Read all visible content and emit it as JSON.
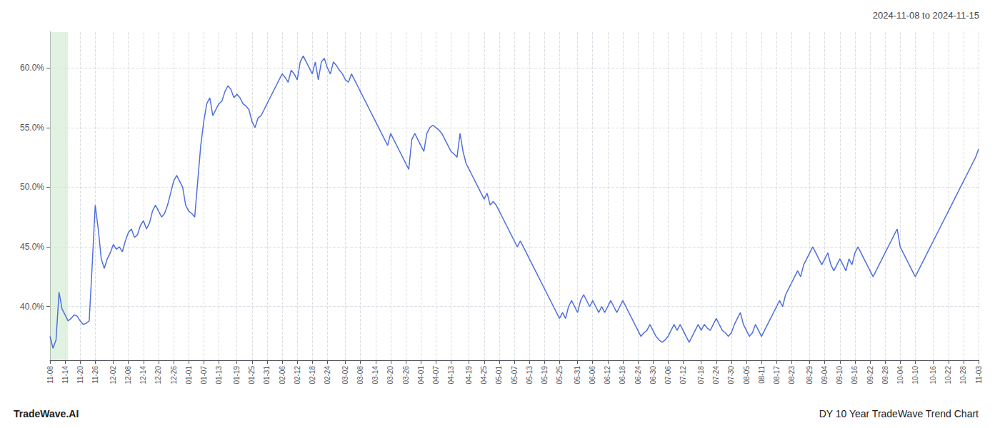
{
  "chart_data": {
    "type": "line",
    "title": "DY 10 Year TradeWave Trend Chart",
    "subtitle": "2024-11-08 to 2024-11-15",
    "annotations": [
      "TradeWave.AI"
    ],
    "grid": true,
    "ylim": [
      35.5,
      63.0
    ],
    "yticks": [
      {
        "value": 40.0,
        "label": "40.0%"
      },
      {
        "value": 45.0,
        "label": "45.0%"
      },
      {
        "value": 50.0,
        "label": "50.0%"
      },
      {
        "value": 55.0,
        "label": "55.0%"
      },
      {
        "value": 60.0,
        "label": "60.0%"
      }
    ],
    "highlight": {
      "from": 0,
      "to": 6,
      "color": "#d6ecd6"
    },
    "categories": [
      "11-08",
      null,
      null,
      null,
      null,
      "11-14",
      null,
      null,
      null,
      null,
      "11-20",
      null,
      null,
      null,
      null,
      "11-26",
      null,
      null,
      null,
      null,
      null,
      "12-02",
      null,
      null,
      null,
      null,
      "12-08",
      null,
      null,
      null,
      null,
      "12-14",
      null,
      null,
      null,
      null,
      "12-20",
      null,
      null,
      null,
      null,
      "12-26",
      null,
      null,
      null,
      null,
      "01-01",
      null,
      null,
      null,
      null,
      "01-07",
      null,
      null,
      null,
      null,
      "01-13",
      null,
      null,
      null,
      null,
      null,
      "01-19",
      null,
      null,
      null,
      null,
      "01-25",
      null,
      null,
      null,
      null,
      "01-31",
      null,
      null,
      null,
      null,
      "02-06",
      null,
      null,
      null,
      null,
      "02-12",
      null,
      null,
      null,
      null,
      "02-18",
      null,
      null,
      null,
      null,
      "02-24",
      null,
      null,
      null,
      null,
      null,
      "03-02",
      null,
      null,
      null,
      null,
      "03-08",
      null,
      null,
      null,
      null,
      "03-14",
      null,
      null,
      null,
      null,
      "03-20",
      null,
      null,
      null,
      null,
      "03-26",
      null,
      null,
      null,
      null,
      "04-01",
      null,
      null,
      null,
      null,
      "04-07",
      null,
      null,
      null,
      null,
      "04-13",
      null,
      null,
      null,
      null,
      null,
      "04-19",
      null,
      null,
      null,
      null,
      "04-25",
      null,
      null,
      null,
      null,
      "05-01",
      null,
      null,
      null,
      null,
      "05-07",
      null,
      null,
      null,
      null,
      "05-13",
      null,
      null,
      null,
      null,
      "05-19",
      null,
      null,
      null,
      null,
      "05-25",
      null,
      null,
      null,
      null,
      null,
      "05-31",
      null,
      null,
      null,
      null,
      "06-06",
      null,
      null,
      null,
      null,
      "06-12",
      null,
      null,
      null,
      null,
      "06-18",
      null,
      null,
      null,
      null,
      "06-24",
      null,
      null,
      null,
      null,
      "06-30",
      null,
      null,
      null,
      null,
      "07-06",
      null,
      null,
      null,
      null,
      "07-12",
      null,
      null,
      null,
      null,
      null,
      "07-18",
      null,
      null,
      null,
      null,
      "07-24",
      null,
      null,
      null,
      null,
      "07-30",
      null,
      null,
      null,
      null,
      "08-05",
      null,
      null,
      null,
      null,
      "08-11",
      null,
      null,
      null,
      null,
      "08-17",
      null,
      null,
      null,
      null,
      "08-23",
      null,
      null,
      null,
      null,
      null,
      "08-29",
      null,
      null,
      null,
      null,
      "09-04",
      null,
      null,
      null,
      null,
      "09-10",
      null,
      null,
      null,
      null,
      "09-16",
      null,
      null,
      null,
      null,
      "09-22",
      null,
      null,
      null,
      null,
      "09-28",
      null,
      null,
      null,
      null,
      "10-04",
      null,
      null,
      null,
      null,
      "10-10",
      null,
      null,
      null,
      null,
      null,
      "10-16",
      null,
      null,
      null,
      null,
      "10-22",
      null,
      null,
      null,
      null,
      "10-28",
      null,
      null,
      null,
      null,
      "11-03"
    ],
    "values": [
      37.5,
      36.5,
      37.2,
      41.2,
      39.8,
      39.3,
      38.8,
      39.0,
      39.3,
      39.2,
      38.8,
      38.5,
      38.6,
      38.8,
      43.5,
      48.5,
      46.5,
      44.0,
      43.2,
      44.0,
      44.5,
      45.2,
      44.8,
      45.0,
      44.6,
      45.5,
      46.2,
      46.5,
      45.8,
      46.0,
      46.8,
      47.2,
      46.5,
      47.0,
      48.0,
      48.5,
      48.0,
      47.5,
      47.8,
      48.5,
      49.5,
      50.5,
      51.0,
      50.5,
      50.0,
      48.5,
      48.0,
      47.8,
      47.5,
      50.5,
      53.5,
      55.5,
      57.0,
      57.5,
      56.0,
      56.5,
      57.0,
      57.2,
      58.0,
      58.5,
      58.2,
      57.5,
      57.8,
      57.5,
      57.0,
      56.8,
      56.5,
      55.5,
      55.0,
      55.8,
      56.0,
      56.5,
      57.0,
      57.5,
      58.0,
      58.5,
      59.0,
      59.5,
      59.2,
      58.8,
      59.8,
      59.5,
      59.0,
      60.5,
      61.0,
      60.5,
      60.0,
      59.5,
      60.5,
      59.0,
      60.5,
      60.8,
      60.0,
      59.5,
      60.5,
      60.2,
      59.8,
      59.5,
      59.0,
      58.8,
      59.5,
      59.0,
      58.5,
      58.0,
      57.5,
      57.0,
      56.5,
      56.0,
      55.5,
      55.0,
      54.5,
      54.0,
      53.5,
      54.5,
      54.0,
      53.5,
      53.0,
      52.5,
      52.0,
      51.5,
      54.0,
      54.5,
      54.0,
      53.5,
      53.0,
      54.5,
      55.0,
      55.2,
      55.0,
      54.8,
      54.5,
      54.0,
      53.5,
      53.0,
      52.8,
      52.5,
      54.5,
      53.0,
      52.0,
      51.5,
      51.0,
      50.5,
      50.0,
      49.5,
      49.0,
      49.5,
      48.5,
      48.8,
      48.5,
      48.0,
      47.5,
      47.0,
      46.5,
      46.0,
      45.5,
      45.0,
      45.5,
      45.0,
      44.5,
      44.0,
      43.5,
      43.0,
      42.5,
      42.0,
      41.5,
      41.0,
      40.5,
      40.0,
      39.5,
      39.0,
      39.5,
      39.0,
      40.0,
      40.5,
      40.0,
      39.5,
      40.5,
      41.0,
      40.5,
      40.0,
      40.5,
      40.0,
      39.5,
      40.0,
      39.5,
      40.0,
      40.5,
      40.0,
      39.5,
      40.0,
      40.5,
      40.0,
      39.5,
      39.0,
      38.5,
      38.0,
      37.5,
      37.8,
      38.0,
      38.5,
      38.0,
      37.5,
      37.2,
      37.0,
      37.2,
      37.5,
      38.0,
      38.5,
      38.0,
      38.5,
      38.0,
      37.5,
      37.0,
      37.5,
      38.0,
      38.5,
      38.0,
      38.5,
      38.2,
      38.0,
      38.5,
      39.0,
      38.5,
      38.0,
      37.8,
      37.5,
      37.8,
      38.5,
      39.0,
      39.5,
      38.5,
      38.0,
      37.5,
      37.8,
      38.5,
      38.0,
      37.5,
      38.0,
      38.5,
      39.0,
      39.5,
      40.0,
      40.5,
      40.0,
      41.0,
      41.5,
      42.0,
      42.5,
      43.0,
      42.5,
      43.5,
      44.0,
      44.5,
      45.0,
      44.5,
      44.0,
      43.5,
      44.0,
      44.5,
      43.5,
      43.0,
      43.5,
      44.0,
      43.5,
      43.0,
      44.0,
      43.5,
      44.5,
      45.0,
      44.5,
      44.0,
      43.5,
      43.0,
      42.5,
      43.0,
      43.5,
      44.0,
      44.5,
      45.0,
      45.5,
      46.0,
      46.5,
      45.0,
      44.5,
      44.0,
      43.5,
      43.0,
      42.5,
      43.0,
      43.5,
      44.0,
      44.5,
      45.0,
      45.5,
      46.0,
      46.5,
      47.0,
      47.5,
      48.0,
      48.5,
      49.0,
      49.5,
      50.0,
      50.5,
      51.0,
      51.5,
      52.0,
      52.5,
      53.2
    ]
  }
}
